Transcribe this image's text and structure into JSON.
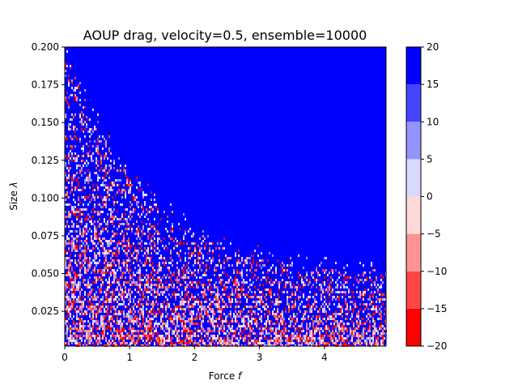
{
  "chart_data": {
    "type": "heatmap",
    "title": "AOUP drag, velocity=0.5, ensemble=10000",
    "xlabel_text": "Force ",
    "xlabel_var": "f",
    "ylabel_text": "Size ",
    "ylabel_var": "λ",
    "xlim": [
      0,
      4.95
    ],
    "ylim": [
      0.002,
      0.2
    ],
    "x_ticks": [
      0,
      1,
      2,
      3,
      4
    ],
    "x_tick_labels": [
      "0",
      "1",
      "2",
      "3",
      "4"
    ],
    "y_ticks": [
      0.025,
      0.05,
      0.075,
      0.1,
      0.125,
      0.15,
      0.175,
      0.2
    ],
    "y_tick_labels": [
      "0.025",
      "0.050",
      "0.075",
      "0.100",
      "0.125",
      "0.150",
      "0.175",
      "0.200"
    ],
    "colorbar": {
      "levels": [
        -20,
        -15,
        -10,
        -5,
        0,
        5,
        10,
        15,
        20
      ],
      "tick_labels": [
        "−20",
        "−15",
        "−10",
        "−5",
        "0",
        "5",
        "10",
        "15",
        "20"
      ],
      "colors": [
        "#ff0000",
        "#ff4545",
        "#ff9494",
        "#ffd9d9",
        "#d9d9ff",
        "#9494ff",
        "#4545ff",
        "#0000ff"
      ]
    },
    "field_description_values": {
      "dominant_value_range": [
        15,
        20
      ],
      "noisy_region": "small size and low force; boundary decreases from about 0.2 at f=0 to about 0.05 at f=4.9"
    }
  }
}
